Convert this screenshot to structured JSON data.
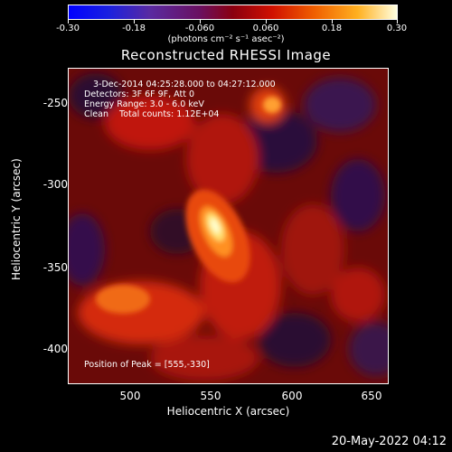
{
  "colorbar": {
    "ticks": [
      "-0.30",
      "-0.18",
      "-0.060",
      "0.060",
      "0.18",
      "0.30"
    ],
    "units": "(photons cm⁻² s⁻¹ asec⁻²)"
  },
  "plot": {
    "title": "Reconstructed RHESSI Image",
    "info": {
      "time": "3-Dec-2014 04:25:28.000 to 04:27:12.000",
      "detectors": "Detectors: 3F 6F 9F, Att 0",
      "energy": "Energy Range: 3.0 - 6.0 keV",
      "method": "Clean    Total counts: 1.12E+04",
      "peak": "Position of Peak = [555,-330]"
    },
    "xlabel": "Heliocentric X (arcsec)",
    "ylabel": "Heliocentric Y (arcsec)",
    "xticks": [
      "500",
      "550",
      "600",
      "650"
    ],
    "yticks": [
      "-250",
      "-300",
      "-350",
      "-400"
    ]
  },
  "footer": {
    "timestamp": "20-May-2022 04:12"
  }
}
